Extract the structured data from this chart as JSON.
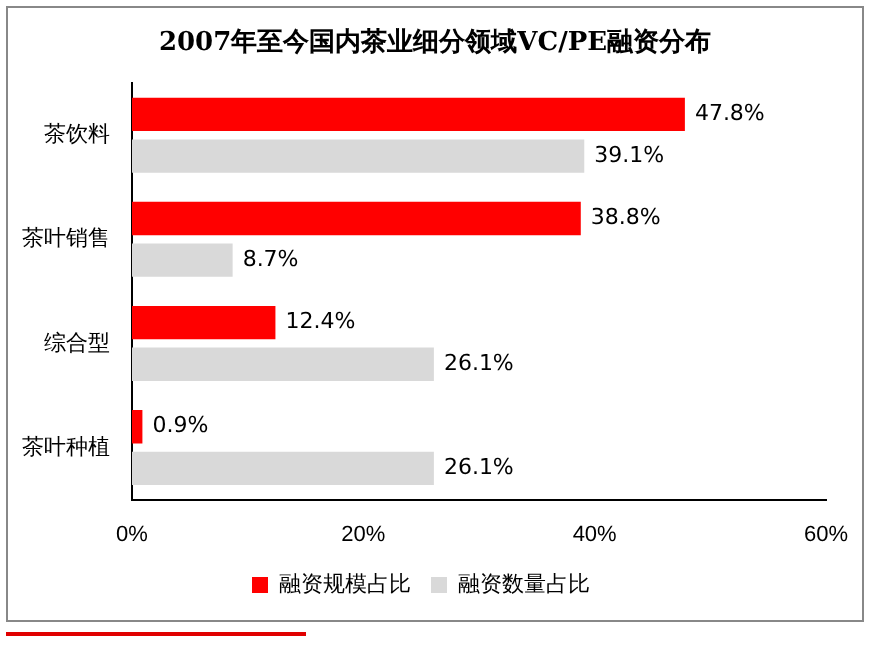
{
  "chart_data": {
    "type": "bar",
    "orientation": "horizontal",
    "title": "2007年至今国内茶业细分领域VC/PE融资分布",
    "categories": [
      "茶饮料",
      "茶叶销售",
      "综合型",
      "茶叶种植"
    ],
    "series": [
      {
        "name": "融资规模占比",
        "color": "#ff0000",
        "values": [
          47.8,
          38.8,
          12.4,
          0.9
        ],
        "value_labels": [
          "47.8%",
          "38.8%",
          "12.4%",
          "0.9%"
        ]
      },
      {
        "name": "融资数量占比",
        "color": "#d9d9d9",
        "values": [
          39.1,
          8.7,
          26.1,
          26.1
        ],
        "value_labels": [
          "39.1%",
          "8.7%",
          "26.1%",
          "26.1%"
        ]
      }
    ],
    "xlim": [
      0,
      60
    ],
    "xticks": [
      {
        "value": 0,
        "label": "0%"
      },
      {
        "value": 20,
        "label": "20%"
      },
      {
        "value": 40,
        "label": "40%"
      },
      {
        "value": 60,
        "label": "60%"
      }
    ],
    "legend": "bottom"
  }
}
